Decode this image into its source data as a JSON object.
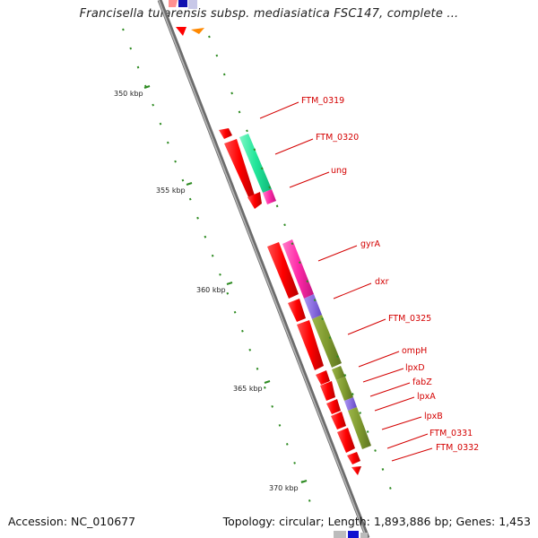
{
  "title": "Francisella tularensis subsp. mediasiatica FSC147, complete ...",
  "accession": "Accession: NC_010677",
  "topology": "Topology: circular; Length: 1,893,886 bp; Genes: 1,453",
  "scale_labels": [
    "350 kbp",
    "355 kbp",
    "360 kbp",
    "365 kbp",
    "370 kbp"
  ],
  "gene_labels": [
    "FTM_0319",
    "FTM_0320",
    "ung",
    "gyrA",
    "dxr",
    "FTM_0325",
    "ompH",
    "lpxD",
    "fabZ",
    "lpxA",
    "lpxB",
    "FTM_0331",
    "FTM_0332"
  ],
  "colors": {
    "gene": "#ff0000",
    "label": "#d40000",
    "green_feature": "#7f9a2f",
    "mint_feature": "#22e69a",
    "magenta_feature": "#ff2aa8",
    "purple_feature": "#8b6fe0",
    "backbone": "#8e8e8e",
    "tick": "#2e8b22"
  }
}
